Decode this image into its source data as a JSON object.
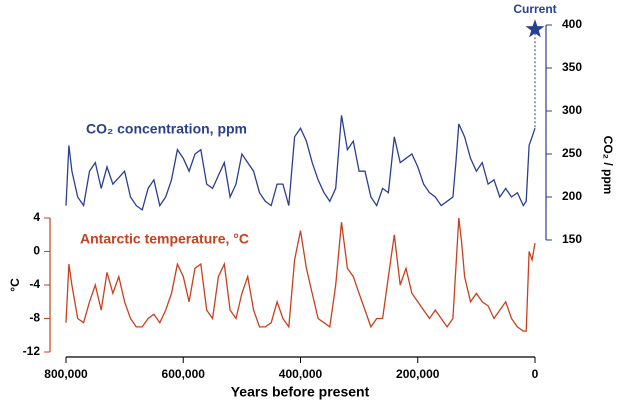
{
  "chart_data": {
    "type": "line",
    "xlabel": "Years before present",
    "ylabel": "°C",
    "y2label": "CO₂ / ppm",
    "xlim": [
      800000,
      0
    ],
    "xticks": [
      {
        "value": 800000,
        "label": "800,000"
      },
      {
        "value": 600000,
        "label": "600,000"
      },
      {
        "value": 400000,
        "label": "400,000"
      },
      {
        "value": 200000,
        "label": "200,000"
      },
      0
    ],
    "ylim": [
      -12,
      4
    ],
    "yticks": [
      4,
      0,
      -4,
      -8,
      -12
    ],
    "y2lim": [
      150,
      400
    ],
    "y2ticks": [
      400,
      350,
      300,
      250,
      200,
      150
    ],
    "series": [
      {
        "name": "CO₂ concentration, ppm",
        "color": "#2b3f8f",
        "axis": "y2",
        "x": [
          800000,
          795000,
          790000,
          780000,
          770000,
          760000,
          750000,
          740000,
          730000,
          720000,
          700000,
          690000,
          680000,
          670000,
          660000,
          650000,
          640000,
          630000,
          620000,
          610000,
          600000,
          590000,
          580000,
          570000,
          560000,
          550000,
          540000,
          530000,
          520000,
          510000,
          500000,
          490000,
          480000,
          470000,
          460000,
          450000,
          440000,
          430000,
          420000,
          410000,
          400000,
          390000,
          380000,
          370000,
          360000,
          350000,
          340000,
          330000,
          320000,
          310000,
          300000,
          290000,
          280000,
          270000,
          260000,
          250000,
          240000,
          230000,
          220000,
          210000,
          200000,
          190000,
          180000,
          170000,
          160000,
          150000,
          140000,
          135000,
          130000,
          120000,
          110000,
          100000,
          90000,
          80000,
          70000,
          60000,
          50000,
          40000,
          30000,
          20000,
          15000,
          10000,
          5000,
          0
        ],
        "values": [
          190,
          260,
          230,
          200,
          190,
          230,
          240,
          210,
          235,
          215,
          230,
          200,
          190,
          185,
          210,
          220,
          190,
          200,
          220,
          255,
          245,
          230,
          250,
          255,
          215,
          210,
          225,
          240,
          200,
          215,
          250,
          240,
          230,
          205,
          195,
          190,
          215,
          215,
          190,
          270,
          280,
          265,
          240,
          220,
          205,
          195,
          210,
          295,
          255,
          265,
          230,
          230,
          200,
          190,
          210,
          205,
          270,
          240,
          245,
          250,
          235,
          215,
          205,
          200,
          190,
          195,
          200,
          240,
          285,
          270,
          245,
          230,
          240,
          215,
          220,
          200,
          210,
          200,
          205,
          190,
          195,
          260,
          270,
          280
        ]
      },
      {
        "name": "Antarctic temperature, °C",
        "color": "#c8401f",
        "axis": "y",
        "x": [
          800000,
          795000,
          790000,
          780000,
          770000,
          760000,
          750000,
          740000,
          730000,
          720000,
          710000,
          700000,
          690000,
          680000,
          670000,
          660000,
          650000,
          640000,
          630000,
          620000,
          610000,
          600000,
          590000,
          580000,
          570000,
          560000,
          550000,
          540000,
          530000,
          520000,
          510000,
          500000,
          490000,
          480000,
          470000,
          460000,
          450000,
          440000,
          430000,
          420000,
          410000,
          400000,
          390000,
          380000,
          370000,
          360000,
          350000,
          340000,
          330000,
          320000,
          310000,
          300000,
          290000,
          280000,
          270000,
          260000,
          250000,
          240000,
          230000,
          220000,
          210000,
          200000,
          190000,
          180000,
          170000,
          160000,
          150000,
          140000,
          130000,
          125000,
          120000,
          110000,
          100000,
          90000,
          80000,
          70000,
          60000,
          50000,
          40000,
          30000,
          20000,
          15000,
          10000,
          5000,
          0
        ],
        "values": [
          -8.5,
          -1.5,
          -4,
          -8,
          -8.5,
          -6,
          -4,
          -7,
          -2.5,
          -5,
          -3,
          -6,
          -8,
          -9,
          -9,
          -8,
          -7.5,
          -8.5,
          -7,
          -5,
          -1.5,
          -3,
          -6,
          -2,
          -1.5,
          -7,
          -8,
          -3,
          -1.5,
          -7,
          -8,
          -5,
          -3,
          -7,
          -9,
          -9,
          -8.5,
          -6,
          -8,
          -9,
          -1,
          2.5,
          -2,
          -5,
          -8,
          -8.5,
          -9,
          -4,
          3.5,
          -2,
          -3,
          -5,
          -7,
          -9,
          -8,
          -8,
          -3,
          2,
          -4,
          -2,
          -5,
          -6,
          -7,
          -8,
          -7,
          -8,
          -9,
          -8,
          4,
          1,
          -3,
          -6,
          -5,
          -6,
          -6.5,
          -8,
          -7,
          -6,
          -8,
          -9,
          -9.5,
          -9.5,
          0,
          -1,
          1
        ]
      }
    ],
    "annotation": {
      "text": "Current",
      "x": 0,
      "value": 395
    }
  }
}
